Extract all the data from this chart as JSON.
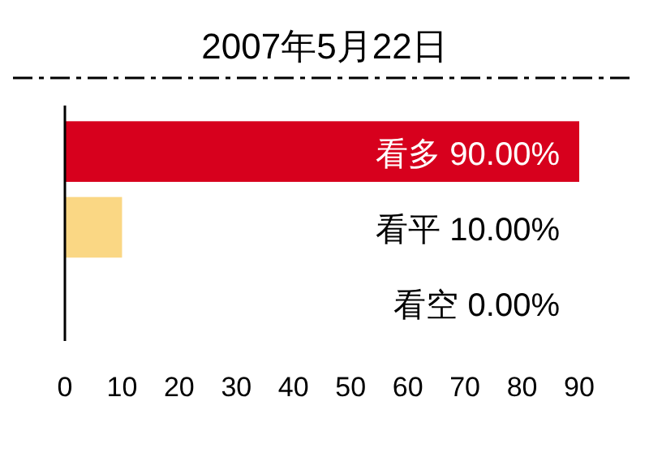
{
  "chart_data": {
    "type": "bar",
    "orientation": "horizontal",
    "title": "2007年5月22日",
    "categories": [
      "看多",
      "看平",
      "看空"
    ],
    "values": [
      90,
      10,
      0
    ],
    "colors": [
      "#d7001d",
      "#fad784",
      "#d7001d"
    ],
    "value_labels": [
      "90.00%",
      "10.00%",
      "0.00%"
    ],
    "xlim": [
      0,
      90
    ],
    "xticks": [
      0,
      10,
      20,
      30,
      40,
      50,
      60,
      70,
      80,
      90
    ]
  }
}
